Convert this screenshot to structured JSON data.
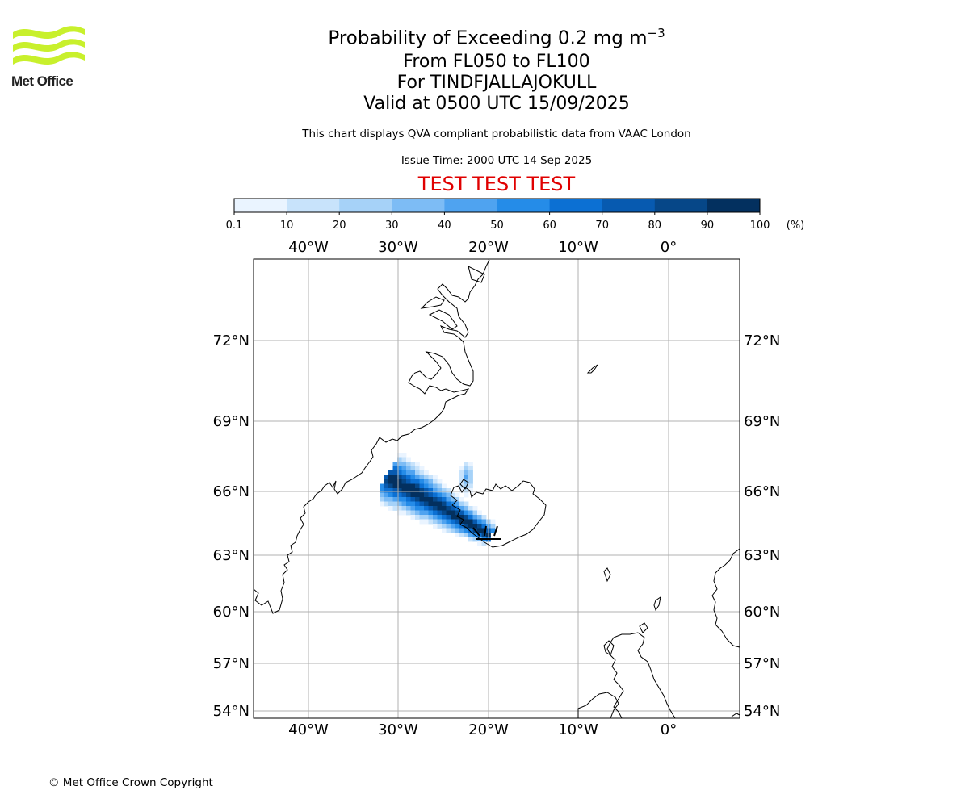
{
  "logo": {
    "text": "Met Office",
    "wave_color": "#c8f02c"
  },
  "header": {
    "title_main": "Probability of Exceeding 0.2 mg m",
    "title_sup": "−3",
    "line2": "From FL050 to FL100",
    "line3": "For TINDFJALLAJOKULL",
    "line4": "Valid at 0500 UTC 15/09/2025",
    "note": "This chart displays QVA compliant probabilistic data from VAAC London",
    "issue_time": "Issue Time: 2000 UTC 14 Sep 2025",
    "test_banner": "TEST TEST TEST",
    "test_color": "#e00000"
  },
  "colorbar": {
    "ticks": [
      "0.1",
      "10",
      "20",
      "30",
      "40",
      "50",
      "60",
      "70",
      "80",
      "90",
      "100"
    ],
    "unit": "(%)",
    "colors": [
      "#eaf4ff",
      "#c8e3fb",
      "#a6d2f8",
      "#7dbcf5",
      "#4fa3f0",
      "#258ce8",
      "#0c70d3",
      "#075ab0",
      "#064788",
      "#03305f"
    ]
  },
  "map": {
    "lon_labels": [
      "40°W",
      "30°W",
      "20°W",
      "10°W",
      "0°"
    ],
    "lat_labels": [
      "72°N",
      "69°N",
      "66°N",
      "63°N",
      "60°N",
      "57°N",
      "54°N"
    ],
    "grid_color": "#b0b0b0",
    "volcano": "TINDFJALLAJOKULL"
  },
  "footer": {
    "copyright": "© Met Office Crown Copyright"
  }
}
